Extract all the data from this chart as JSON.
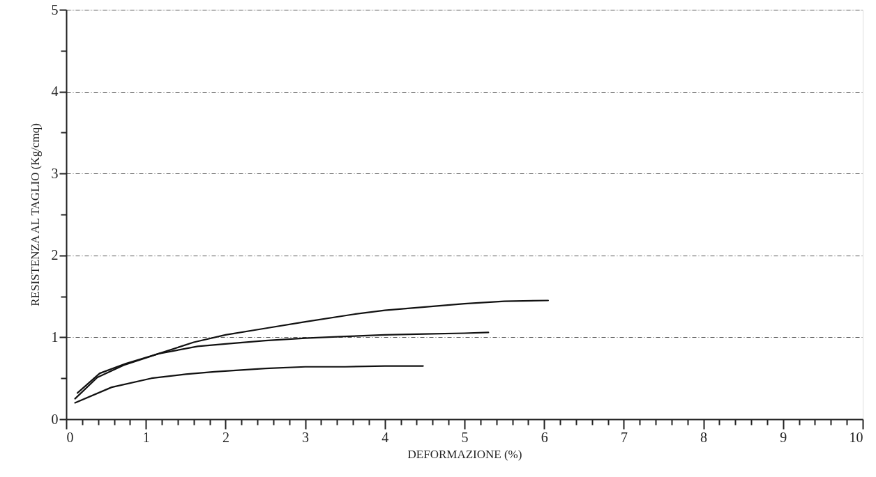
{
  "chart_data": {
    "type": "line",
    "xlabel": "DEFORMAZIONE (%)",
    "ylabel": "RESISTENZA AL TAGLIO (Kg/cmq)",
    "series": [
      {
        "color": "#111111",
        "x": [
          0.14,
          0.42,
          0.75,
          1.16,
          1.6,
          2.0,
          2.5,
          3.0,
          3.6,
          4.0,
          4.5,
          5.0,
          5.5,
          6.05
        ],
        "values": [
          0.32,
          0.56,
          0.68,
          0.8,
          0.94,
          1.03,
          1.11,
          1.19,
          1.28,
          1.33,
          1.37,
          1.41,
          1.44,
          1.45
        ]
      },
      {
        "color": "#111111",
        "x": [
          0.11,
          0.39,
          0.72,
          1.16,
          1.65,
          2.0,
          2.5,
          3.0,
          3.5,
          4.0,
          4.5,
          5.0,
          5.3
        ],
        "values": [
          0.25,
          0.51,
          0.66,
          0.8,
          0.89,
          0.92,
          0.96,
          0.99,
          1.01,
          1.03,
          1.04,
          1.05,
          1.06
        ]
      },
      {
        "color": "#111111",
        "x": [
          0.11,
          0.57,
          1.07,
          1.5,
          1.86,
          2.5,
          3.0,
          3.5,
          4.0,
          4.48
        ],
        "values": [
          0.2,
          0.39,
          0.5,
          0.55,
          0.58,
          0.62,
          0.64,
          0.64,
          0.65,
          0.65
        ]
      }
    ],
    "xlim": [
      0,
      10
    ],
    "xticks": [
      0,
      {
        "value": 0.2,
        "label": null
      },
      {
        "value": 0.4,
        "label": null
      },
      {
        "value": 0.6,
        "label": null
      },
      {
        "value": 0.8,
        "label": null
      },
      1,
      {
        "value": 1.2,
        "label": null
      },
      {
        "value": 1.4,
        "label": null
      },
      {
        "value": 1.6,
        "label": null
      },
      {
        "value": 1.8,
        "label": null
      },
      2,
      {
        "value": 2.2,
        "label": null
      },
      {
        "value": 2.4,
        "label": null
      },
      {
        "value": 2.6,
        "label": null
      },
      {
        "value": 2.8,
        "label": null
      },
      3,
      {
        "value": 3.2,
        "label": null
      },
      {
        "value": 3.4,
        "label": null
      },
      {
        "value": 3.6,
        "label": null
      },
      {
        "value": 3.8,
        "label": null
      },
      4,
      {
        "value": 4.2,
        "label": null
      },
      {
        "value": 4.4,
        "label": null
      },
      {
        "value": 4.6,
        "label": null
      },
      {
        "value": 4.8,
        "label": null
      },
      5,
      {
        "value": 5.2,
        "label": null
      },
      {
        "value": 5.4,
        "label": null
      },
      {
        "value": 5.6,
        "label": null
      },
      {
        "value": 5.8,
        "label": null
      },
      6,
      {
        "value": 6.2,
        "label": null
      },
      {
        "value": 6.4,
        "label": null
      },
      {
        "value": 6.6,
        "label": null
      },
      {
        "value": 6.8,
        "label": null
      },
      7,
      {
        "value": 7.2,
        "label": null
      },
      {
        "value": 7.4,
        "label": null
      },
      {
        "value": 7.6,
        "label": null
      },
      {
        "value": 7.8,
        "label": null
      },
      8,
      {
        "value": 8.2,
        "label": null
      },
      {
        "value": 8.4,
        "label": null
      },
      {
        "value": 8.6,
        "label": null
      },
      {
        "value": 8.8,
        "label": null
      },
      9,
      {
        "value": 9.2,
        "label": null
      },
      {
        "value": 9.4,
        "label": null
      },
      {
        "value": 9.6,
        "label": null
      },
      {
        "value": 9.8,
        "label": null
      },
      10
    ],
    "ylim": [
      0,
      5
    ],
    "yticks": [
      0,
      {
        "value": 0.5,
        "label": null
      },
      1,
      {
        "value": 1.5,
        "label": null
      },
      2,
      {
        "value": 2.5,
        "label": null
      },
      3,
      {
        "value": 3.5,
        "label": null
      },
      4,
      {
        "value": 4.5,
        "label": null
      },
      5
    ],
    "grid": "y",
    "line_style": "solid",
    "marker": "none"
  }
}
